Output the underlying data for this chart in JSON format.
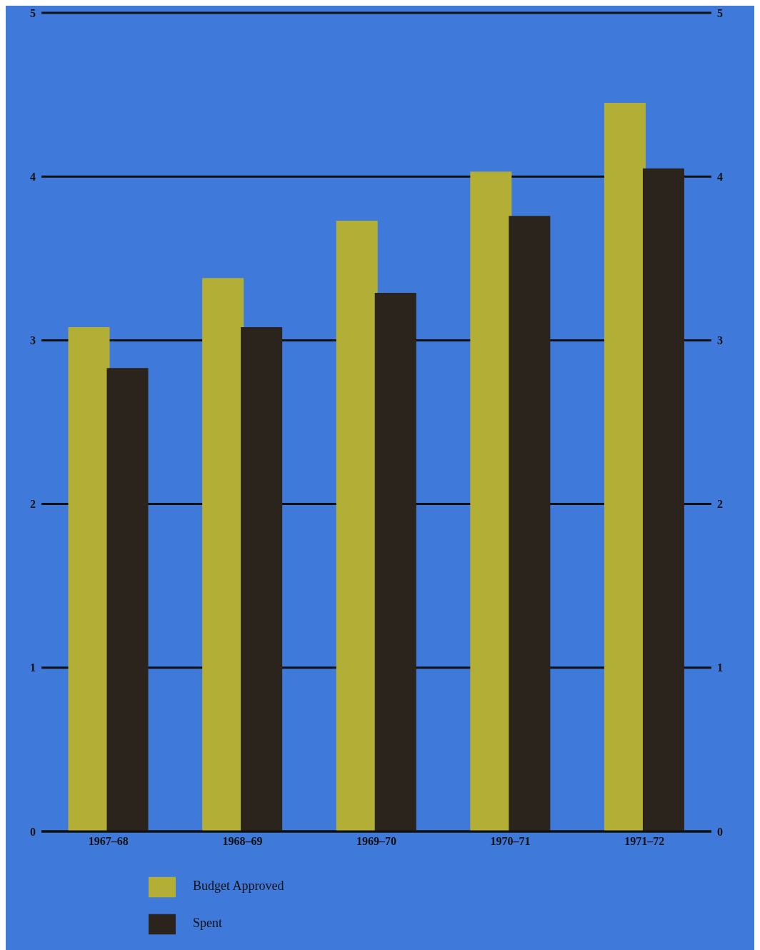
{
  "chart_data": {
    "type": "bar",
    "categories": [
      "1967–68",
      "1968–69",
      "1969–70",
      "1970–71",
      "1971–72"
    ],
    "series": [
      {
        "name": "Budget Approved",
        "color": "#b3ae36",
        "values": [
          3.08,
          3.38,
          3.73,
          4.03,
          4.45
        ]
      },
      {
        "name": "Spent",
        "color": "#2b241d",
        "values": [
          2.83,
          3.08,
          3.29,
          3.76,
          4.05
        ]
      }
    ],
    "ylim": [
      0,
      5
    ],
    "yticks": [
      0,
      1,
      2,
      3,
      4,
      5
    ],
    "y2lim": [
      0,
      5
    ],
    "y2ticks": [
      0,
      1,
      2,
      3,
      4,
      5
    ],
    "grid": "y",
    "legend": "bottom left"
  }
}
